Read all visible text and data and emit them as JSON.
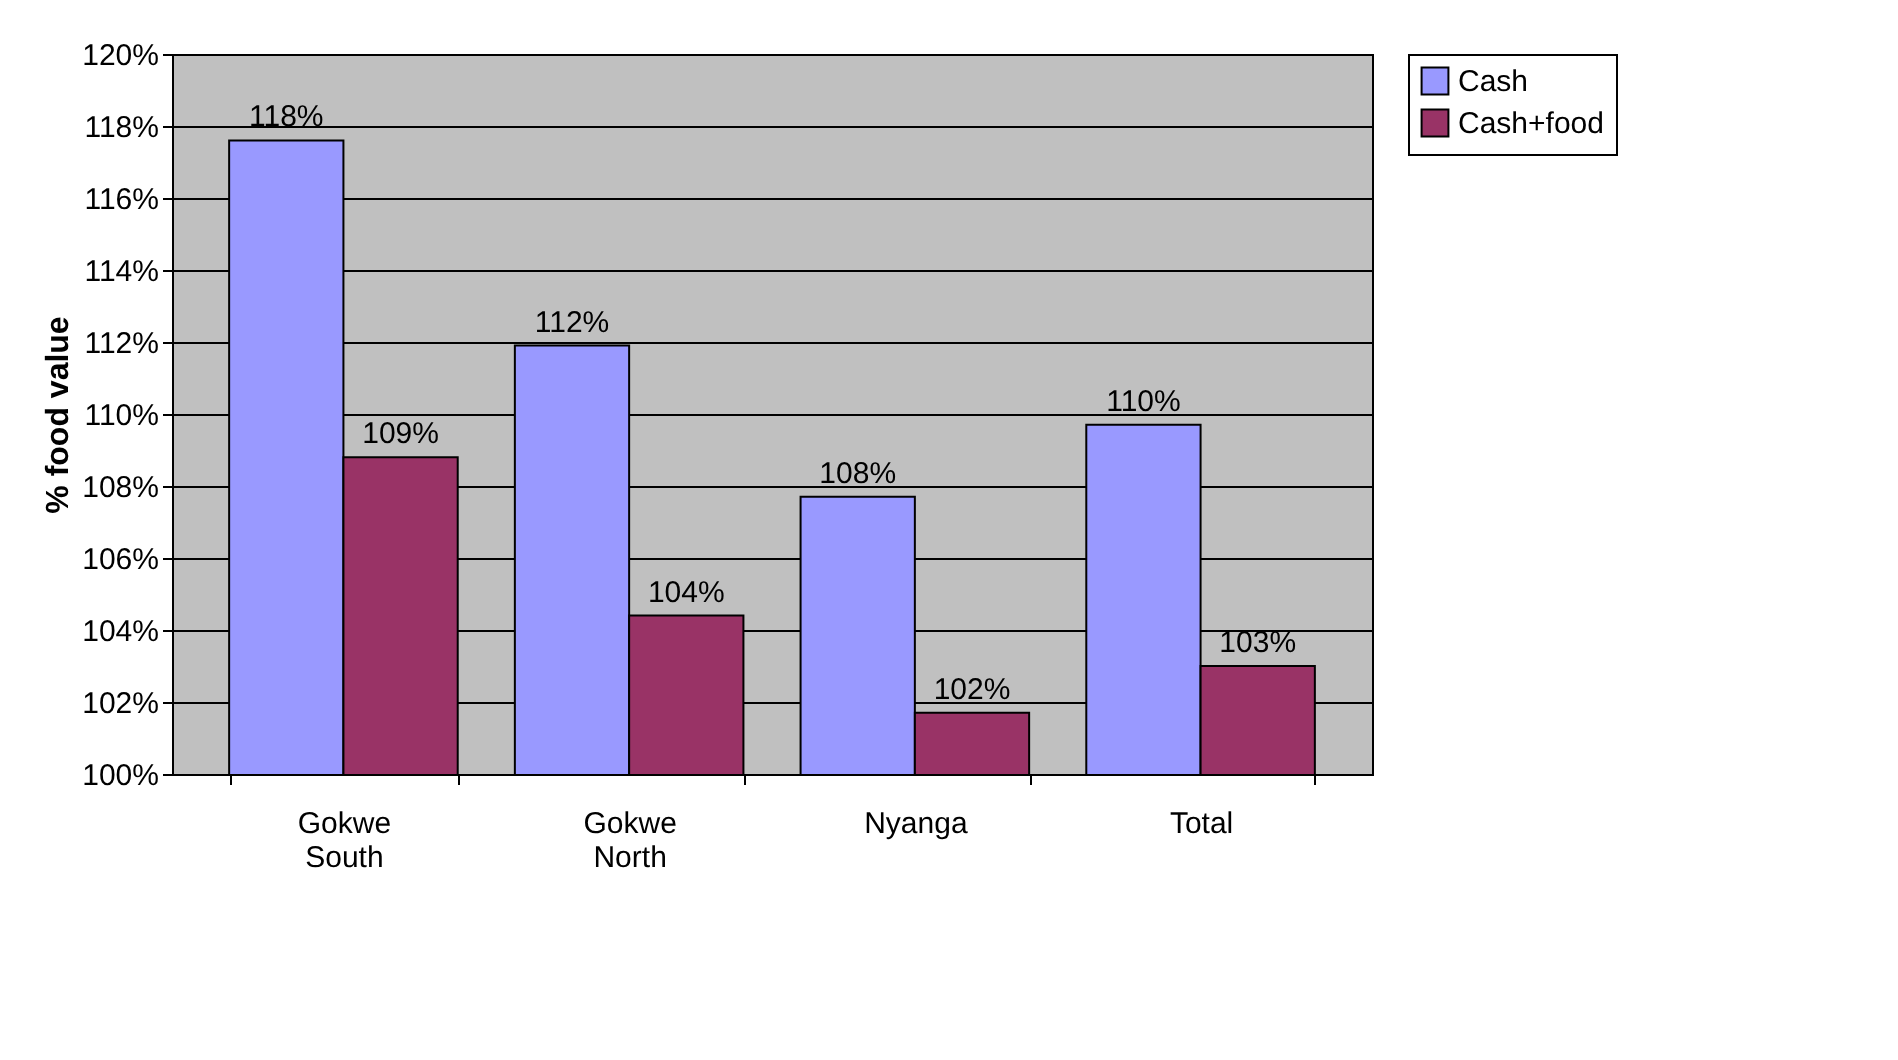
{
  "chart_data": {
    "type": "bar",
    "ylabel": "% food value",
    "categories": [
      "Gokwe South",
      "Gokwe North",
      "Nyanga",
      "Total"
    ],
    "series": [
      {
        "name": "Cash",
        "color": "#9999ff",
        "values": [
          117.6,
          111.9,
          107.7,
          109.7
        ],
        "value_labels": [
          "118%",
          "112%",
          "108%",
          "110%"
        ]
      },
      {
        "name": "Cash+food",
        "color": "#993366",
        "values": [
          108.8,
          104.4,
          101.7,
          103.0
        ],
        "value_labels": [
          "109%",
          "104%",
          "102%",
          "103%"
        ]
      }
    ],
    "ylim": [
      100,
      120
    ],
    "yticks": [
      {
        "value": 100,
        "label": "100%"
      },
      {
        "value": 102,
        "label": "102%"
      },
      {
        "value": 104,
        "label": "104%"
      },
      {
        "value": 106,
        "label": "106%"
      },
      {
        "value": 108,
        "label": "108%"
      },
      {
        "value": 110,
        "label": "110%"
      },
      {
        "value": 112,
        "label": "112%"
      },
      {
        "value": 114,
        "label": "114%"
      },
      {
        "value": 116,
        "label": "116%"
      },
      {
        "value": 118,
        "label": "118%"
      },
      {
        "value": 120,
        "label": "120%"
      }
    ],
    "grid": "y",
    "legend": "right"
  }
}
